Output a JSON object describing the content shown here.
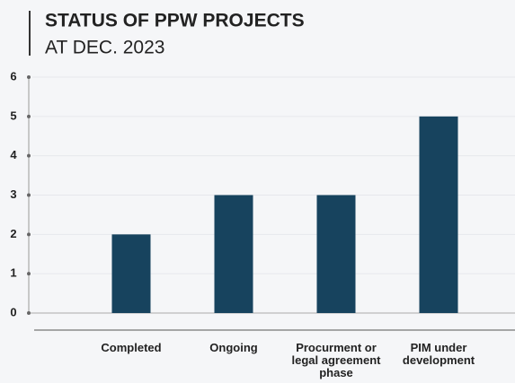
{
  "chart_data": {
    "type": "bar",
    "title": "STATUS OF PPW PROJECTS",
    "subtitle": "AT DEC. 2023",
    "categories": [
      "Completed",
      "Ongoing",
      "Procurment or legal agreement phase",
      "PIM under development"
    ],
    "values": [
      2,
      3,
      3,
      5
    ],
    "color": "#17435e",
    "ylim": [
      0,
      6
    ],
    "yticks": [
      0,
      1,
      2,
      3,
      4,
      5,
      6
    ],
    "grid": true
  }
}
